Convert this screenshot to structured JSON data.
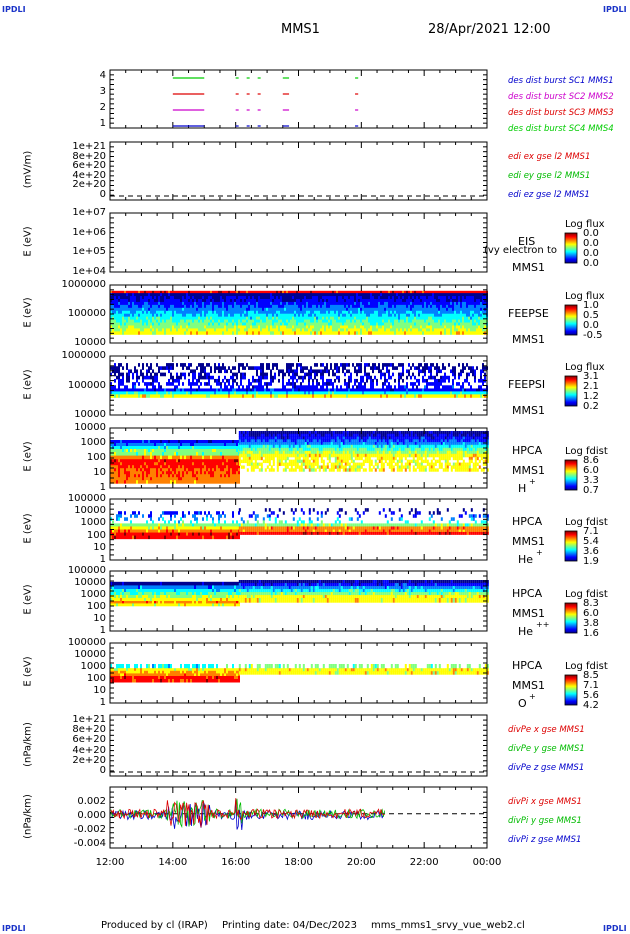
{
  "header": {
    "corner_label": "IPDLI",
    "spacecraft": "MMS1",
    "datetime": "28/Apr/2021 12:00"
  },
  "footer": {
    "produced_by": "Produced by cl (IRAP)",
    "printing_date": "Printing date: 04/Dec/2023",
    "script": "mms_mms1_srvy_vue_web2.cl"
  },
  "chart_data": {
    "type": "multi-panel time series / spectrogram",
    "x_axis": {
      "ticks": [
        "12:00",
        "14:00",
        "16:00",
        "18:00",
        "20:00",
        "22:00",
        "00:00"
      ],
      "range_hours": [
        12,
        24
      ]
    },
    "panels": [
      {
        "id": "burst",
        "type": "line",
        "yticks": [
          "4",
          "3",
          "2",
          "1"
        ],
        "series": [
          {
            "name": "des dist burst SC1 MMS1",
            "color": "#0000cc",
            "level": 1
          },
          {
            "name": "des dist burst SC2 MMS2",
            "color": "#cc00cc",
            "level": 2
          },
          {
            "name": "des dist burst SC3 MMS3",
            "color": "#dd0000",
            "level": 3
          },
          {
            "name": "des dist burst SC4 MMS4",
            "color": "#00cc00",
            "level": 4
          }
        ],
        "intervals_hours": [
          [
            14.0,
            15.0
          ],
          [
            16.0,
            16.05
          ],
          [
            16.35,
            16.4
          ],
          [
            16.7,
            16.75
          ],
          [
            17.5,
            17.7
          ],
          [
            19.8,
            19.9
          ]
        ]
      },
      {
        "id": "edi",
        "ylabel": "(mV/m)",
        "yticks": [
          "1e+21",
          "8e+20",
          "6e+20",
          "4e+20",
          "2e+20",
          "0"
        ],
        "series": [
          {
            "name": "edi ex gse l2 MMS1",
            "color": "#dd0000"
          },
          {
            "name": "edi ey gse l2 MMS1",
            "color": "#00bb00"
          },
          {
            "name": "edi ez gse l2 MMS1",
            "color": "#0000cc"
          }
        ]
      },
      {
        "id": "eis",
        "ylabel": "E (eV)",
        "yticks": [
          "1e+07",
          "1e+06",
          "1e+05",
          "1e+04"
        ],
        "instrument": "EIS",
        "note": "(vy electron to",
        "sc": "MMS1",
        "colorbar": {
          "title": "Log flux",
          "values": [
            "0.0",
            "0.0",
            "0.0",
            "0.0"
          ]
        }
      },
      {
        "id": "feepse",
        "ylabel": "E (eV)",
        "yticks": [
          "1000000",
          "100000",
          "10000"
        ],
        "instrument": "FEEPSE",
        "sc": "MMS1",
        "colorbar": {
          "title": "Log flux",
          "values": [
            "1.0",
            "0.5",
            "0.0",
            "-0.5"
          ]
        }
      },
      {
        "id": "feepsi",
        "ylabel": "E (eV)",
        "yticks": [
          "1000000",
          "100000",
          "10000"
        ],
        "instrument": "FEEPSI",
        "sc": "MMS1",
        "colorbar": {
          "title": "Log flux",
          "values": [
            "3.1",
            "2.1",
            "1.2",
            "0.2"
          ]
        }
      },
      {
        "id": "hpca_h",
        "ylabel": "E (eV)",
        "yticks": [
          "10000",
          "1000",
          "100",
          "10",
          "1"
        ],
        "instrument": "HPCA",
        "sc": "MMS1",
        "species": "H",
        "charge": "+",
        "colorbar": {
          "title": "Log fdist",
          "values": [
            "8.6",
            "6.0",
            "3.3",
            "0.7"
          ]
        }
      },
      {
        "id": "hpca_he",
        "ylabel": "E (eV)",
        "yticks": [
          "100000",
          "10000",
          "1000",
          "100",
          "10",
          "1"
        ],
        "instrument": "HPCA",
        "sc": "MMS1",
        "species": "He",
        "charge": "+",
        "colorbar": {
          "title": "Log fdist",
          "values": [
            "7.1",
            "5.4",
            "3.6",
            "1.9"
          ]
        }
      },
      {
        "id": "hpca_he2",
        "ylabel": "E (eV)",
        "yticks": [
          "100000",
          "10000",
          "1000",
          "100",
          "10",
          "1"
        ],
        "instrument": "HPCA",
        "sc": "MMS1",
        "species": "He",
        "charge": "++",
        "colorbar": {
          "title": "Log fdist",
          "values": [
            "8.3",
            "6.0",
            "3.8",
            "1.6"
          ]
        }
      },
      {
        "id": "hpca_o",
        "ylabel": "E (eV)",
        "yticks": [
          "100000",
          "10000",
          "1000",
          "100",
          "10",
          "1"
        ],
        "instrument": "HPCA",
        "sc": "MMS1",
        "species": "O",
        "charge": "+",
        "colorbar": {
          "title": "Log fdist",
          "values": [
            "8.5",
            "7.1",
            "5.6",
            "4.2"
          ]
        }
      },
      {
        "id": "divpe",
        "ylabel": "(nPa/km)",
        "yticks": [
          "1e+21",
          "8e+20",
          "6e+20",
          "4e+20",
          "2e+20",
          "0"
        ],
        "series": [
          {
            "name": "divPe x gse MMS1",
            "color": "#dd0000"
          },
          {
            "name": "divPe y gse MMS1",
            "color": "#00bb00"
          },
          {
            "name": "divPe z gse MMS1",
            "color": "#0000cc"
          }
        ]
      },
      {
        "id": "divpi",
        "ylabel": "(nPa/km)",
        "yticks": [
          "0.002",
          "0.000",
          "-0.002",
          "-0.004"
        ],
        "ylim": [
          -0.0045,
          0.0035
        ],
        "series": [
          {
            "name": "divPi x gse MMS1",
            "color": "#dd0000"
          },
          {
            "name": "divPi y gse MMS1",
            "color": "#00bb00"
          },
          {
            "name": "divPi z gse MMS1",
            "color": "#0000cc"
          }
        ],
        "data_end_hours": 20.75
      }
    ]
  }
}
